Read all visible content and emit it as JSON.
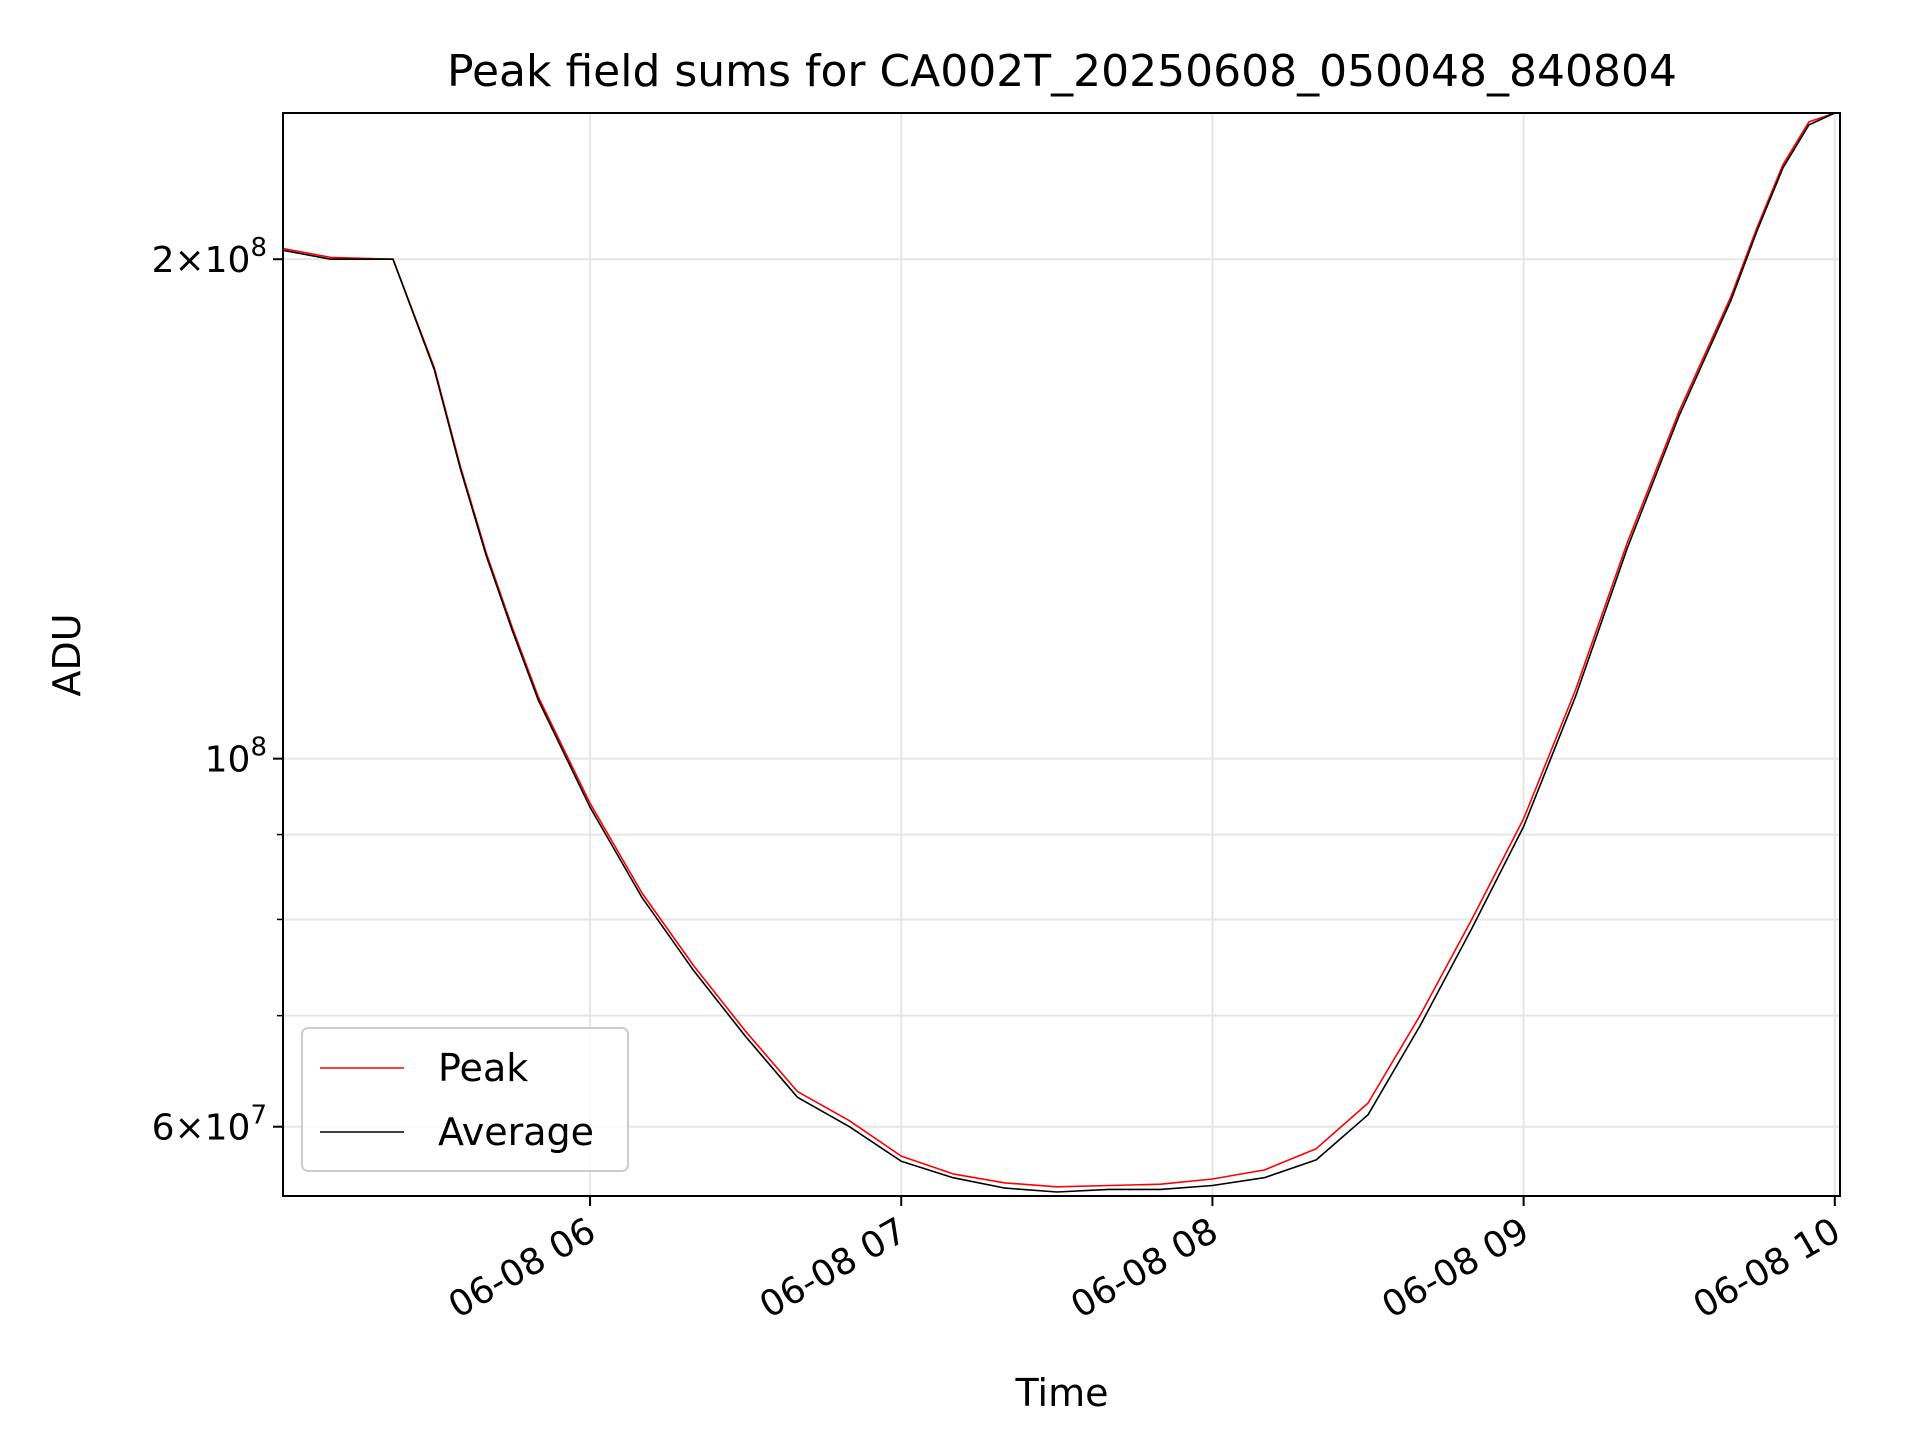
{
  "chart_data": {
    "type": "line",
    "title": "Peak field sums for CA002T_20250608_050048_840804",
    "xlabel": "Time",
    "ylabel": "ADU",
    "x_scale": "time",
    "y_scale": "log",
    "xlim": [
      "2025-06-08 05:00:48",
      "2025-06-08 10:01:00"
    ],
    "ylim": [
      54500000,
      245000000
    ],
    "grid": true,
    "legend_position": "lower-left",
    "x_ticks": [
      {
        "value": "2025-06-08 06:00",
        "label": "06-08 06"
      },
      {
        "value": "2025-06-08 07:00",
        "label": "06-08 07"
      },
      {
        "value": "2025-06-08 08:00",
        "label": "06-08 08"
      },
      {
        "value": "2025-06-08 09:00",
        "label": "06-08 09"
      },
      {
        "value": "2025-06-08 10:00",
        "label": "06-08 10"
      }
    ],
    "y_ticks": [
      {
        "value": 200000000,
        "label_mantissa": "2",
        "label_exp": "8"
      },
      {
        "value": 100000000,
        "label_mantissa": "",
        "label_exp": "8"
      },
      {
        "value": 60000000,
        "label_mantissa": "6",
        "label_exp": "7"
      }
    ],
    "y_minor_ticks": [
      70000000,
      80000000,
      90000000
    ],
    "series": [
      {
        "name": "Peak",
        "color": "#ff0000",
        "x": [
          "2025-06-08 05:00:48",
          "2025-06-08 05:10",
          "2025-06-08 05:22",
          "2025-06-08 05:30",
          "2025-06-08 05:35",
          "2025-06-08 05:40",
          "2025-06-08 05:45",
          "2025-06-08 05:50",
          "2025-06-08 06:00",
          "2025-06-08 06:10",
          "2025-06-08 06:20",
          "2025-06-08 06:30",
          "2025-06-08 06:40",
          "2025-06-08 06:50",
          "2025-06-08 07:00",
          "2025-06-08 07:10",
          "2025-06-08 07:20",
          "2025-06-08 07:30",
          "2025-06-08 07:40",
          "2025-06-08 07:50",
          "2025-06-08 08:00",
          "2025-06-08 08:10",
          "2025-06-08 08:20",
          "2025-06-08 08:30",
          "2025-06-08 08:40",
          "2025-06-08 08:50",
          "2025-06-08 09:00",
          "2025-06-08 09:10",
          "2025-06-08 09:20",
          "2025-06-08 09:30",
          "2025-06-08 09:40",
          "2025-06-08 09:45",
          "2025-06-08 09:50",
          "2025-06-08 09:55",
          "2025-06-08 10:00",
          "2025-06-08 10:01"
        ],
        "values": [
          203000000,
          200500000,
          200000000,
          172000000,
          150000000,
          133000000,
          120000000,
          109000000,
          94000000,
          83000000,
          75000000,
          68500000,
          63000000,
          60500000,
          57600000,
          56200000,
          55500000,
          55200000,
          55300000,
          55400000,
          55800000,
          56500000,
          58200000,
          62000000,
          70000000,
          80000000,
          92000000,
          110000000,
          135000000,
          162000000,
          190000000,
          209000000,
          228000000,
          242000000,
          245000000,
          245000000
        ]
      },
      {
        "name": "Average",
        "color": "#000000",
        "x": [
          "2025-06-08 05:00:48",
          "2025-06-08 05:10",
          "2025-06-08 05:22",
          "2025-06-08 05:30",
          "2025-06-08 05:35",
          "2025-06-08 05:40",
          "2025-06-08 05:45",
          "2025-06-08 05:50",
          "2025-06-08 06:00",
          "2025-06-08 06:10",
          "2025-06-08 06:20",
          "2025-06-08 06:30",
          "2025-06-08 06:40",
          "2025-06-08 06:50",
          "2025-06-08 07:00",
          "2025-06-08 07:10",
          "2025-06-08 07:20",
          "2025-06-08 07:30",
          "2025-06-08 07:40",
          "2025-06-08 07:50",
          "2025-06-08 08:00",
          "2025-06-08 08:10",
          "2025-06-08 08:20",
          "2025-06-08 08:30",
          "2025-06-08 08:40",
          "2025-06-08 08:50",
          "2025-06-08 09:00",
          "2025-06-08 09:10",
          "2025-06-08 09:20",
          "2025-06-08 09:30",
          "2025-06-08 09:40",
          "2025-06-08 09:45",
          "2025-06-08 09:50",
          "2025-06-08 09:55",
          "2025-06-08 10:00",
          "2025-06-08 10:01"
        ],
        "values": [
          202500000,
          200000000,
          200000000,
          171500000,
          149500000,
          132500000,
          119500000,
          108500000,
          93500000,
          82500000,
          74500000,
          68000000,
          62500000,
          60000000,
          57200000,
          55900000,
          55100000,
          54800000,
          55000000,
          55000000,
          55300000,
          55900000,
          57300000,
          61000000,
          69000000,
          79000000,
          91000000,
          109000000,
          134000000,
          161000000,
          189000000,
          208000000,
          227000000,
          241000000,
          245000000,
          245000000
        ]
      }
    ]
  }
}
